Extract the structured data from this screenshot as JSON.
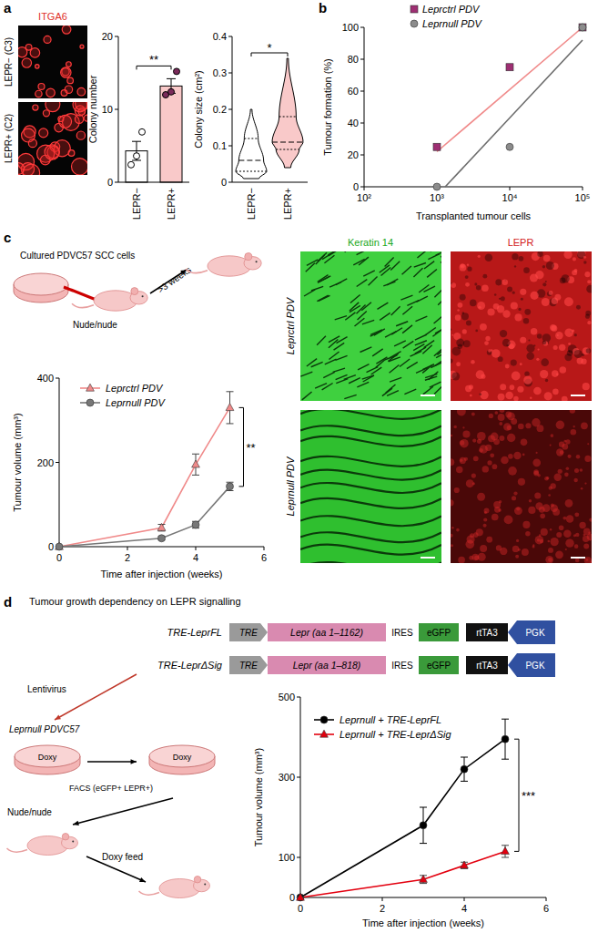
{
  "chart_data": [
    {
      "type": "bar",
      "y_label": "Colony number",
      "categories": [
        "LEPR−",
        "LEPR+"
      ],
      "values": [
        4.3,
        13.2
      ],
      "errors": [
        1.3,
        1.0
      ],
      "points": [
        [
          2.4,
          3.6,
          6.9
        ],
        [
          12.0,
          12.4,
          15.2
        ]
      ],
      "colors": [
        "#ffffff",
        "#f9c9c9"
      ],
      "ylim": [
        0,
        20
      ],
      "yticks": [
        0,
        10,
        20
      ],
      "annotation": "**"
    },
    {
      "type": "violin",
      "y_label": "Colony size (cm²)",
      "categories": [
        "LEPR−",
        "LEPR+"
      ],
      "min": [
        0.01,
        0.04
      ],
      "q1": [
        0.03,
        0.09
      ],
      "median": [
        0.06,
        0.11
      ],
      "q3": [
        0.12,
        0.18
      ],
      "max": [
        0.2,
        0.34
      ],
      "colors": [
        "#ffffff",
        "#f9c9c9"
      ],
      "ylim": [
        0,
        0.4
      ],
      "yticks": [
        0,
        0.1,
        0.2,
        0.3,
        0.4
      ],
      "annotation": "*"
    },
    {
      "type": "scatter",
      "log": "x",
      "x_label": "Transplanted tumour cells",
      "y_label": "Tumour formation (%)",
      "xlim": [
        100,
        100000
      ],
      "xticks": [
        {
          "value": 100,
          "label": "10²"
        },
        {
          "value": 1000,
          "label": "10³"
        },
        {
          "value": 10000,
          "label": "10⁴"
        },
        {
          "value": 100000,
          "label": "10⁵"
        }
      ],
      "ylim": [
        0,
        100
      ],
      "yticks": [
        0,
        20,
        40,
        60,
        80,
        100
      ],
      "legend": "upper left",
      "series": [
        {
          "name": "Leprctrl PDV",
          "type": "scatter",
          "marker": "square",
          "color": "#9e2f73",
          "x": [
            1000,
            10000,
            100000
          ],
          "values": [
            25,
            75,
            100
          ]
        },
        {
          "name": "Leprnull PDV",
          "type": "scatter",
          "marker": "circle",
          "color": "#8c8c8c",
          "x": [
            1000,
            10000,
            100000
          ],
          "values": [
            0,
            25,
            100
          ]
        },
        {
          "type": "line",
          "color": "#f08a8a",
          "x": [
            1000,
            100000
          ],
          "values": [
            22,
            100
          ]
        },
        {
          "type": "line",
          "color": "#6b6b6b",
          "x": [
            1300,
            100000
          ],
          "values": [
            0,
            92
          ]
        }
      ]
    },
    {
      "type": "line",
      "x_label": "Time after injection (weeks)",
      "y_label": "Tumour volume (mm³)",
      "x": [
        0,
        3,
        4,
        5
      ],
      "xlim": [
        0,
        6
      ],
      "xticks": [
        0,
        2,
        4,
        6
      ],
      "ylim": [
        0,
        400
      ],
      "yticks": [
        0,
        200,
        400
      ],
      "legend": "upper left",
      "annotation": "**",
      "series": [
        {
          "name": "Leprctrl PDV",
          "marker": "triangle",
          "color": "#f08a8a",
          "values": [
            0,
            45,
            195,
            330
          ],
          "errors": [
            0,
            8,
            25,
            38
          ]
        },
        {
          "name": "Leprnull PDV",
          "marker": "circle",
          "color": "#777777",
          "values": [
            0,
            20,
            52,
            143
          ],
          "errors": [
            0,
            4,
            8,
            10
          ]
        }
      ]
    },
    {
      "type": "line",
      "x_label": "Time after injection (weeks)",
      "y_label": "Tumour volume (mm³)",
      "x": [
        0,
        3,
        4,
        5
      ],
      "xlim": [
        0,
        6
      ],
      "xticks": [
        0,
        2,
        4,
        6
      ],
      "ylim": [
        0,
        500
      ],
      "yticks": [
        0,
        100,
        300,
        500
      ],
      "legend": "upper left",
      "annotation": "***",
      "series": [
        {
          "name": "Leprnull + TRE-LeprFL",
          "marker": "circle",
          "color": "#000000",
          "values": [
            0,
            180,
            320,
            395
          ],
          "errors": [
            0,
            45,
            30,
            50
          ]
        },
        {
          "name": "Leprnull + TRE-LeprΔSig",
          "marker": "triangle",
          "color": "#e3000f",
          "values": [
            0,
            45,
            80,
            115
          ],
          "errors": [
            0,
            10,
            8,
            15
          ]
        }
      ]
    }
  ],
  "panels": {
    "a": {
      "letter": "a",
      "stain": "ITGA6",
      "rows": [
        "LEPR− (C3)",
        "LEPR+ (C2)"
      ]
    },
    "b": {
      "letter": "b"
    },
    "c": {
      "letter": "c",
      "schematic": [
        "Cultured PDVC57 SCC cells",
        "Nude/nude",
        ">3 weeks"
      ],
      "columns": [
        "Keratin 14",
        "LEPR"
      ],
      "rows": [
        "Leprctrl PDV",
        "Leprnull PDV"
      ]
    },
    "d": {
      "letter": "d",
      "title": "Tumour growth dependency on LEPR signalling",
      "constructs": [
        {
          "label": "TRE-LeprFL",
          "parts": [
            "TRE",
            "Lepr (aa 1–1162)",
            "IRES",
            "eGFP",
            "rtTA3",
            "PGK"
          ]
        },
        {
          "label": "TRE-LeprΔSig",
          "parts": [
            "TRE",
            "Lepr (aa 1–818)",
            "IRES",
            "eGFP",
            "rtTA3",
            "PGK"
          ]
        }
      ],
      "schematic": [
        "Lentivirus",
        "Leprnull PDVC57",
        "Doxy",
        "FACS (eGFP+ LEPR+)",
        "Doxy",
        "Nude/nude",
        "Doxy feed"
      ]
    }
  }
}
